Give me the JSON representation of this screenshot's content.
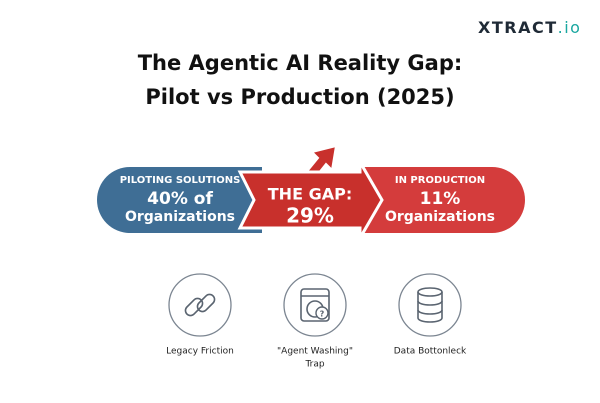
{
  "logo": {
    "brand": "XTRACT",
    "suffix": ".io"
  },
  "header": {
    "title_line1": "The Agentic AI Reality Gap:",
    "title_line2": "Pilot vs Production (2025)"
  },
  "pilot": {
    "label": "PILOTING SOLUTIONS",
    "value": "40% of",
    "caption": "Organizations"
  },
  "gap": {
    "label": "THE GAP:",
    "value": "29%"
  },
  "production": {
    "label": "IN PRODUCTION",
    "value": "11%",
    "caption": "Organizations"
  },
  "factors": [
    {
      "lines": [
        "Legacy Friction"
      ]
    },
    {
      "lines": [
        "\"Agent Washing\"",
        "Trap"
      ]
    },
    {
      "lines": [
        "Data Bottonleck"
      ]
    }
  ]
}
